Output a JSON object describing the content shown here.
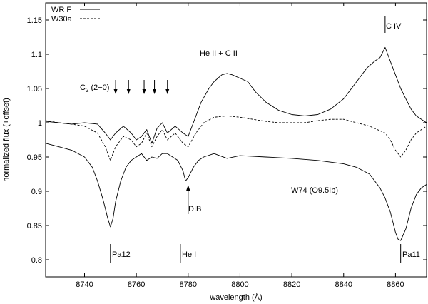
{
  "chart_data": {
    "type": "line",
    "xlabel": "wavelength (Å)",
    "ylabel": "normalized flux (+offset)",
    "xlim": [
      8725,
      8872
    ],
    "ylim": [
      0.775,
      1.175
    ],
    "x_ticks": [
      8740,
      8760,
      8780,
      8800,
      8820,
      8840,
      8860
    ],
    "y_ticks": [
      0.8,
      0.85,
      0.9,
      0.95,
      1,
      1.05,
      1.1,
      1.15
    ],
    "x_tick_labels": [
      "8740",
      "8760",
      "8780",
      "8800",
      "8820",
      "8840",
      "8860"
    ],
    "y_tick_labels": [
      "0.8",
      "0.85",
      "0.9",
      "0.95",
      "1",
      "1.05",
      "1.1",
      "1.15"
    ],
    "grid": false,
    "legend_position": "top-left",
    "series": [
      {
        "name": "WR F",
        "style": "solid",
        "x": [
          8725,
          8730,
          8735,
          8740,
          8745,
          8748,
          8750,
          8752,
          8755,
          8758,
          8760,
          8762,
          8764,
          8766,
          8768,
          8770,
          8772,
          8775,
          8778,
          8780,
          8782,
          8785,
          8788,
          8790,
          8793,
          8795,
          8797,
          8800,
          8803,
          8806,
          8810,
          8815,
          8820,
          8825,
          8830,
          8835,
          8840,
          8843,
          8846,
          8849,
          8852,
          8854,
          8856,
          8857,
          8858,
          8860,
          8862,
          8864,
          8866,
          8868,
          8870,
          8872
        ],
        "y": [
          1.002,
          1.0,
          0.998,
          1.0,
          0.998,
          0.985,
          0.975,
          0.985,
          0.995,
          0.985,
          0.975,
          0.98,
          0.99,
          0.97,
          0.992,
          1.0,
          0.985,
          0.995,
          0.985,
          0.98,
          1.0,
          1.03,
          1.05,
          1.06,
          1.07,
          1.072,
          1.07,
          1.065,
          1.06,
          1.045,
          1.03,
          1.018,
          1.012,
          1.01,
          1.012,
          1.02,
          1.035,
          1.05,
          1.065,
          1.08,
          1.09,
          1.095,
          1.11,
          1.1,
          1.09,
          1.07,
          1.05,
          1.035,
          1.02,
          1.01,
          1.005,
          1.0
        ]
      },
      {
        "name": "W30a",
        "style": "dashed",
        "x": [
          8725,
          8730,
          8735,
          8740,
          8745,
          8748,
          8750,
          8752,
          8755,
          8758,
          8760,
          8762,
          8764,
          8766,
          8768,
          8770,
          8772,
          8775,
          8778,
          8780,
          8783,
          8786,
          8790,
          8795,
          8800,
          8805,
          8810,
          8815,
          8820,
          8825,
          8830,
          8835,
          8840,
          8845,
          8850,
          8853,
          8856,
          8858,
          8860,
          8862,
          8864,
          8866,
          8868,
          8870,
          8872
        ],
        "y": [
          1.003,
          1.0,
          0.998,
          0.995,
          0.985,
          0.965,
          0.945,
          0.965,
          0.98,
          0.975,
          0.965,
          0.97,
          0.985,
          0.965,
          0.98,
          0.99,
          0.975,
          0.985,
          0.97,
          0.965,
          0.985,
          1.0,
          1.008,
          1.01,
          1.008,
          1.005,
          1.002,
          1.0,
          1.0,
          1.0,
          1.003,
          1.005,
          1.005,
          1.0,
          0.995,
          0.99,
          0.985,
          0.975,
          0.96,
          0.95,
          0.96,
          0.975,
          0.985,
          0.99,
          0.995
        ]
      },
      {
        "name": "W74 (O9.5Ib)",
        "style": "solid",
        "x": [
          8725,
          8730,
          8735,
          8740,
          8743,
          8745,
          8747,
          8748,
          8749,
          8750,
          8751,
          8752,
          8754,
          8756,
          8758,
          8760,
          8762,
          8764,
          8766,
          8768,
          8770,
          8772,
          8774,
          8776,
          8778,
          8779,
          8780,
          8782,
          8784,
          8786,
          8790,
          8795,
          8800,
          8810,
          8820,
          8830,
          8840,
          8845,
          8850,
          8852,
          8854,
          8856,
          8858,
          8859,
          8860,
          8861,
          8862,
          8864,
          8866,
          8868,
          8870,
          8872
        ],
        "y": [
          0.97,
          0.965,
          0.96,
          0.95,
          0.935,
          0.915,
          0.89,
          0.875,
          0.86,
          0.848,
          0.86,
          0.885,
          0.915,
          0.935,
          0.945,
          0.95,
          0.955,
          0.945,
          0.95,
          0.948,
          0.955,
          0.955,
          0.95,
          0.945,
          0.93,
          0.915,
          0.92,
          0.935,
          0.945,
          0.95,
          0.955,
          0.948,
          0.952,
          0.95,
          0.948,
          0.945,
          0.94,
          0.935,
          0.925,
          0.915,
          0.905,
          0.89,
          0.87,
          0.855,
          0.84,
          0.83,
          0.828,
          0.845,
          0.875,
          0.895,
          0.905,
          0.91
        ]
      }
    ],
    "annotations": {
      "he_ii_c_ii": "He II + C II",
      "c2_label": "C",
      "c2_sub": "2",
      "c2_rest": " (2−0)",
      "c_iv": "C IV",
      "dib": "DIB",
      "w74": "W74 (O9.5Ib)",
      "pa12": "Pa12",
      "he_i": "He I",
      "pa11": "Pa11"
    },
    "c2_arrows_x": [
      8752,
      8757,
      8763,
      8767,
      8772
    ],
    "line_markers": {
      "c_iv_x": 8856,
      "pa12_x": 8750,
      "he_i_x": 8777,
      "pa11_x": 8862,
      "dib_x": 8780
    }
  }
}
